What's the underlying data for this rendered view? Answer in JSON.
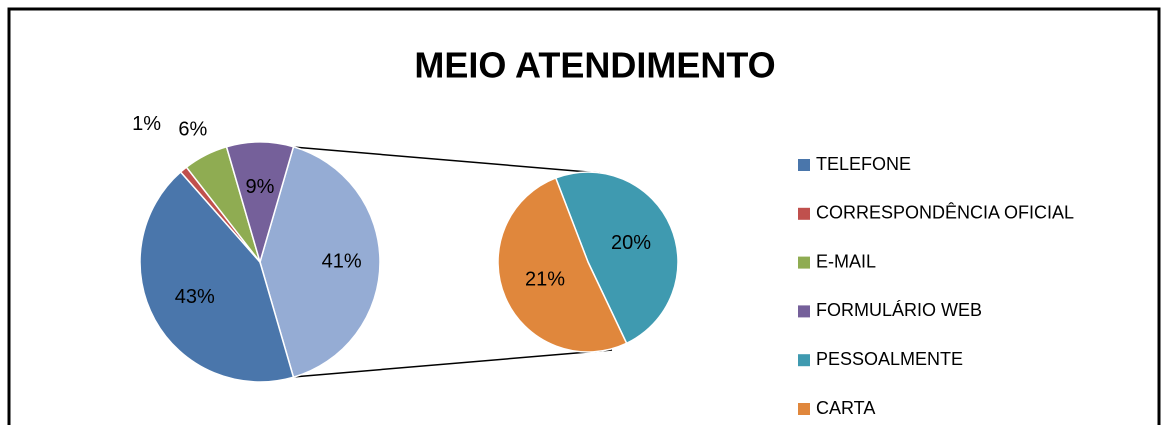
{
  "chart_data": {
    "type": "pie-of-pie",
    "title": "MEIO ATENDIMENTO",
    "categories": [
      "TELEFONE",
      "CORRESPONDÊNCIA OFICIAL",
      "E-MAIL",
      "FORMULÁRIO WEB",
      "PESSOALMENTE",
      "CARTA"
    ],
    "values": [
      43,
      1,
      6,
      9,
      20,
      21
    ],
    "value_labels": [
      "43%",
      "1%",
      "6%",
      "9%",
      "20%",
      "21%"
    ],
    "colors": [
      "#4a76ab",
      "#c0504d",
      "#8fac52",
      "#75609a",
      "#3f9ab0",
      "#e0873c"
    ],
    "secondary_count": 2,
    "other": {
      "value": 41,
      "label": "41%",
      "color": "#95acd4"
    },
    "legend": "right"
  }
}
